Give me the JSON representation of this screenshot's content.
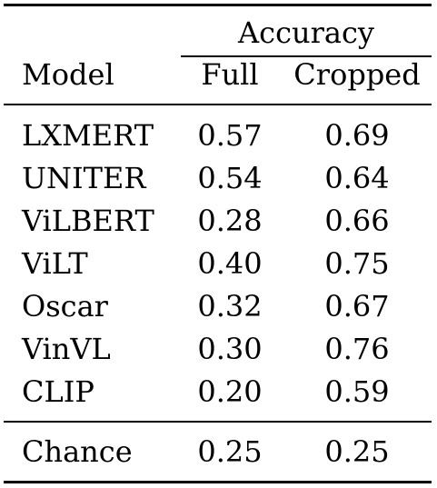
{
  "header": {
    "group_label": "Accuracy",
    "col_model": "Model",
    "col_full": "Full",
    "col_cropped": "Cropped"
  },
  "rows": [
    {
      "model": "LXMERT",
      "full": "0.57",
      "cropped": "0.69"
    },
    {
      "model": "UNITER",
      "full": "0.54",
      "cropped": "0.64"
    },
    {
      "model": "ViLBERT",
      "full": "0.28",
      "cropped": "0.66"
    },
    {
      "model": "ViLT",
      "full": "0.40",
      "cropped": "0.75"
    },
    {
      "model": "Oscar",
      "full": "0.32",
      "cropped": "0.67"
    },
    {
      "model": "VinVL",
      "full": "0.30",
      "cropped": "0.76"
    },
    {
      "model": "CLIP",
      "full": "0.20",
      "cropped": "0.59"
    }
  ],
  "baseline": {
    "model": "Chance",
    "full": "0.25",
    "cropped": "0.25"
  }
}
